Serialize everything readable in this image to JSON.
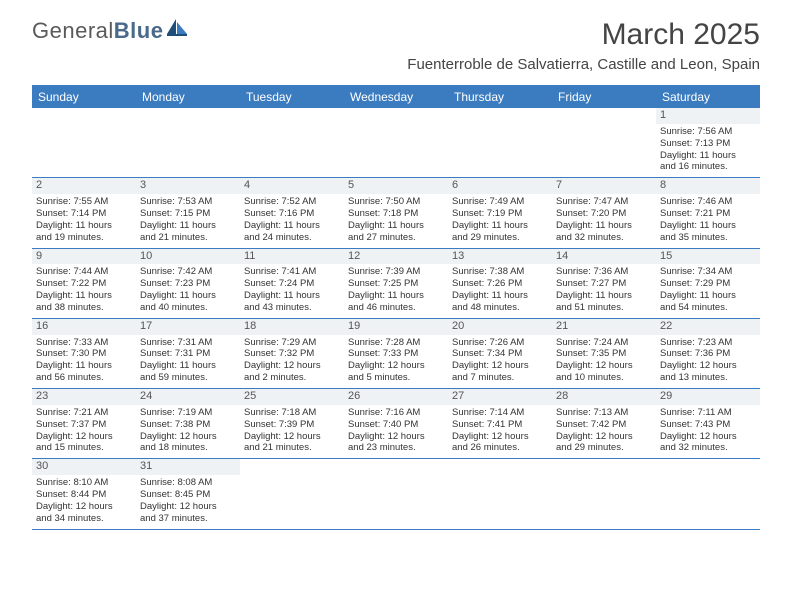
{
  "logo": {
    "part1": "General",
    "part2": "Blue"
  },
  "header": {
    "title": "March 2025",
    "location": "Fuenterroble de Salvatierra, Castille and Leon, Spain"
  },
  "colors": {
    "headerBar": "#3b7bbf",
    "dayNumBg": "#eef2f5",
    "borderBlue": "#3b7bbf"
  },
  "weekdays": [
    "Sunday",
    "Monday",
    "Tuesday",
    "Wednesday",
    "Thursday",
    "Friday",
    "Saturday"
  ],
  "weeks": [
    [
      null,
      null,
      null,
      null,
      null,
      null,
      {
        "n": "1",
        "sr": "Sunrise: 7:56 AM",
        "ss": "Sunset: 7:13 PM",
        "dl1": "Daylight: 11 hours",
        "dl2": "and 16 minutes."
      }
    ],
    [
      {
        "n": "2",
        "sr": "Sunrise: 7:55 AM",
        "ss": "Sunset: 7:14 PM",
        "dl1": "Daylight: 11 hours",
        "dl2": "and 19 minutes."
      },
      {
        "n": "3",
        "sr": "Sunrise: 7:53 AM",
        "ss": "Sunset: 7:15 PM",
        "dl1": "Daylight: 11 hours",
        "dl2": "and 21 minutes."
      },
      {
        "n": "4",
        "sr": "Sunrise: 7:52 AM",
        "ss": "Sunset: 7:16 PM",
        "dl1": "Daylight: 11 hours",
        "dl2": "and 24 minutes."
      },
      {
        "n": "5",
        "sr": "Sunrise: 7:50 AM",
        "ss": "Sunset: 7:18 PM",
        "dl1": "Daylight: 11 hours",
        "dl2": "and 27 minutes."
      },
      {
        "n": "6",
        "sr": "Sunrise: 7:49 AM",
        "ss": "Sunset: 7:19 PM",
        "dl1": "Daylight: 11 hours",
        "dl2": "and 29 minutes."
      },
      {
        "n": "7",
        "sr": "Sunrise: 7:47 AM",
        "ss": "Sunset: 7:20 PM",
        "dl1": "Daylight: 11 hours",
        "dl2": "and 32 minutes."
      },
      {
        "n": "8",
        "sr": "Sunrise: 7:46 AM",
        "ss": "Sunset: 7:21 PM",
        "dl1": "Daylight: 11 hours",
        "dl2": "and 35 minutes."
      }
    ],
    [
      {
        "n": "9",
        "sr": "Sunrise: 7:44 AM",
        "ss": "Sunset: 7:22 PM",
        "dl1": "Daylight: 11 hours",
        "dl2": "and 38 minutes."
      },
      {
        "n": "10",
        "sr": "Sunrise: 7:42 AM",
        "ss": "Sunset: 7:23 PM",
        "dl1": "Daylight: 11 hours",
        "dl2": "and 40 minutes."
      },
      {
        "n": "11",
        "sr": "Sunrise: 7:41 AM",
        "ss": "Sunset: 7:24 PM",
        "dl1": "Daylight: 11 hours",
        "dl2": "and 43 minutes."
      },
      {
        "n": "12",
        "sr": "Sunrise: 7:39 AM",
        "ss": "Sunset: 7:25 PM",
        "dl1": "Daylight: 11 hours",
        "dl2": "and 46 minutes."
      },
      {
        "n": "13",
        "sr": "Sunrise: 7:38 AM",
        "ss": "Sunset: 7:26 PM",
        "dl1": "Daylight: 11 hours",
        "dl2": "and 48 minutes."
      },
      {
        "n": "14",
        "sr": "Sunrise: 7:36 AM",
        "ss": "Sunset: 7:27 PM",
        "dl1": "Daylight: 11 hours",
        "dl2": "and 51 minutes."
      },
      {
        "n": "15",
        "sr": "Sunrise: 7:34 AM",
        "ss": "Sunset: 7:29 PM",
        "dl1": "Daylight: 11 hours",
        "dl2": "and 54 minutes."
      }
    ],
    [
      {
        "n": "16",
        "sr": "Sunrise: 7:33 AM",
        "ss": "Sunset: 7:30 PM",
        "dl1": "Daylight: 11 hours",
        "dl2": "and 56 minutes."
      },
      {
        "n": "17",
        "sr": "Sunrise: 7:31 AM",
        "ss": "Sunset: 7:31 PM",
        "dl1": "Daylight: 11 hours",
        "dl2": "and 59 minutes."
      },
      {
        "n": "18",
        "sr": "Sunrise: 7:29 AM",
        "ss": "Sunset: 7:32 PM",
        "dl1": "Daylight: 12 hours",
        "dl2": "and 2 minutes."
      },
      {
        "n": "19",
        "sr": "Sunrise: 7:28 AM",
        "ss": "Sunset: 7:33 PM",
        "dl1": "Daylight: 12 hours",
        "dl2": "and 5 minutes."
      },
      {
        "n": "20",
        "sr": "Sunrise: 7:26 AM",
        "ss": "Sunset: 7:34 PM",
        "dl1": "Daylight: 12 hours",
        "dl2": "and 7 minutes."
      },
      {
        "n": "21",
        "sr": "Sunrise: 7:24 AM",
        "ss": "Sunset: 7:35 PM",
        "dl1": "Daylight: 12 hours",
        "dl2": "and 10 minutes."
      },
      {
        "n": "22",
        "sr": "Sunrise: 7:23 AM",
        "ss": "Sunset: 7:36 PM",
        "dl1": "Daylight: 12 hours",
        "dl2": "and 13 minutes."
      }
    ],
    [
      {
        "n": "23",
        "sr": "Sunrise: 7:21 AM",
        "ss": "Sunset: 7:37 PM",
        "dl1": "Daylight: 12 hours",
        "dl2": "and 15 minutes."
      },
      {
        "n": "24",
        "sr": "Sunrise: 7:19 AM",
        "ss": "Sunset: 7:38 PM",
        "dl1": "Daylight: 12 hours",
        "dl2": "and 18 minutes."
      },
      {
        "n": "25",
        "sr": "Sunrise: 7:18 AM",
        "ss": "Sunset: 7:39 PM",
        "dl1": "Daylight: 12 hours",
        "dl2": "and 21 minutes."
      },
      {
        "n": "26",
        "sr": "Sunrise: 7:16 AM",
        "ss": "Sunset: 7:40 PM",
        "dl1": "Daylight: 12 hours",
        "dl2": "and 23 minutes."
      },
      {
        "n": "27",
        "sr": "Sunrise: 7:14 AM",
        "ss": "Sunset: 7:41 PM",
        "dl1": "Daylight: 12 hours",
        "dl2": "and 26 minutes."
      },
      {
        "n": "28",
        "sr": "Sunrise: 7:13 AM",
        "ss": "Sunset: 7:42 PM",
        "dl1": "Daylight: 12 hours",
        "dl2": "and 29 minutes."
      },
      {
        "n": "29",
        "sr": "Sunrise: 7:11 AM",
        "ss": "Sunset: 7:43 PM",
        "dl1": "Daylight: 12 hours",
        "dl2": "and 32 minutes."
      }
    ],
    [
      {
        "n": "30",
        "sr": "Sunrise: 8:10 AM",
        "ss": "Sunset: 8:44 PM",
        "dl1": "Daylight: 12 hours",
        "dl2": "and 34 minutes."
      },
      {
        "n": "31",
        "sr": "Sunrise: 8:08 AM",
        "ss": "Sunset: 8:45 PM",
        "dl1": "Daylight: 12 hours",
        "dl2": "and 37 minutes."
      },
      null,
      null,
      null,
      null,
      null
    ]
  ]
}
